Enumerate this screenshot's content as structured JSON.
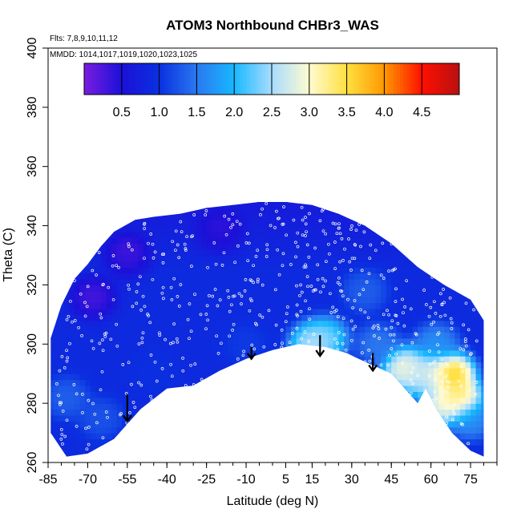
{
  "chart_data": {
    "type": "heatmap",
    "title": "ATOM3 Northbound CHBr3_WAS",
    "subtitle_flights": "Flts: 7,8,9,10,11,12",
    "subtitle_dates": "MMDD: 1014,1017,1019,1020,1023,1025",
    "xlabel": "Latitude (deg N)",
    "ylabel": "Theta (C)",
    "xlim": [
      -85,
      85
    ],
    "ylim": [
      260,
      400
    ],
    "x_tick_labels": [
      "-85",
      "-70",
      "-55",
      "-40",
      "-25",
      "-10",
      "5",
      "15",
      "30",
      "45",
      "60",
      "75"
    ],
    "y_ticks": [
      260,
      280,
      300,
      320,
      340,
      360,
      380,
      400
    ],
    "colorbar": {
      "range": [
        0,
        5
      ],
      "ticks": [
        "0.5",
        "1.0",
        "1.5",
        "2.0",
        "2.5",
        "3.0",
        "3.5",
        "4.0",
        "4.5"
      ],
      "colors": [
        "#7a1de0",
        "#1c10d8",
        "#0a30e0",
        "#2a78f0",
        "#18b8ff",
        "#a8dcff",
        "#fffbd0",
        "#ffe040",
        "#ff9800",
        "#ff1000",
        "#b81010"
      ]
    },
    "field": {
      "boundary_top": [
        [
          -84,
          302
        ],
        [
          -80,
          313
        ],
        [
          -75,
          322
        ],
        [
          -70,
          327
        ],
        [
          -65,
          333
        ],
        [
          -60,
          338
        ],
        [
          -52,
          342
        ],
        [
          -45,
          343
        ],
        [
          -35,
          344
        ],
        [
          -25,
          346
        ],
        [
          -15,
          347
        ],
        [
          -5,
          348
        ],
        [
          5,
          348
        ],
        [
          15,
          347
        ],
        [
          25,
          344
        ],
        [
          35,
          340
        ],
        [
          45,
          334
        ],
        [
          55,
          326
        ],
        [
          65,
          320
        ],
        [
          75,
          315
        ],
        [
          80,
          308
        ]
      ],
      "boundary_bottom": [
        [
          80,
          262
        ],
        [
          75,
          264
        ],
        [
          68,
          270
        ],
        [
          62,
          278
        ],
        [
          58,
          285
        ],
        [
          55,
          280
        ],
        [
          50,
          285
        ],
        [
          45,
          290
        ],
        [
          40,
          292
        ],
        [
          35,
          294
        ],
        [
          28,
          297
        ],
        [
          20,
          299
        ],
        [
          10,
          300
        ],
        [
          0,
          298
        ],
        [
          -10,
          295
        ],
        [
          -20,
          291
        ],
        [
          -30,
          286
        ],
        [
          -40,
          285
        ],
        [
          -50,
          278
        ],
        [
          -60,
          268
        ],
        [
          -70,
          263
        ],
        [
          -78,
          262
        ],
        [
          -84,
          270
        ]
      ],
      "background_level": 0.9,
      "features": [
        {
          "lat": -68,
          "theta": 316,
          "value": 0.2
        },
        {
          "lat": -55,
          "theta": 330,
          "value": 0.3
        },
        {
          "lat": -20,
          "theta": 338,
          "value": 0.5
        },
        {
          "lat": -78,
          "theta": 282,
          "value": 1.4
        },
        {
          "lat": -65,
          "theta": 275,
          "value": 1.3
        },
        {
          "lat": -45,
          "theta": 290,
          "value": 1.0
        },
        {
          "lat": -10,
          "theta": 300,
          "value": 1.1
        },
        {
          "lat": 15,
          "theta": 300,
          "value": 2.8
        },
        {
          "lat": 20,
          "theta": 302,
          "value": 2.5
        },
        {
          "lat": 40,
          "theta": 300,
          "value": 1.6
        },
        {
          "lat": 50,
          "theta": 292,
          "value": 3.3
        },
        {
          "lat": 55,
          "theta": 290,
          "value": 2.6
        },
        {
          "lat": 60,
          "theta": 290,
          "value": 3.0
        },
        {
          "lat": 68,
          "theta": 290,
          "value": 4.1
        },
        {
          "lat": 71,
          "theta": 282,
          "value": 3.7
        },
        {
          "lat": 65,
          "theta": 280,
          "value": 3.2
        },
        {
          "lat": 75,
          "theta": 275,
          "value": 1.8
        },
        {
          "lat": 35,
          "theta": 318,
          "value": 1.4
        },
        {
          "lat": 62,
          "theta": 300,
          "value": 1.8
        }
      ]
    },
    "arrows": [
      {
        "lat": -55,
        "theta_top": 283,
        "theta_bottom": 274
      },
      {
        "lat": -8,
        "theta_top": 299,
        "theta_bottom": 295
      },
      {
        "lat": 18,
        "theta_top": 303,
        "theta_bottom": 296
      },
      {
        "lat": 38,
        "theta_top": 297,
        "theta_bottom": 291
      }
    ],
    "sample_point_count": 520
  }
}
